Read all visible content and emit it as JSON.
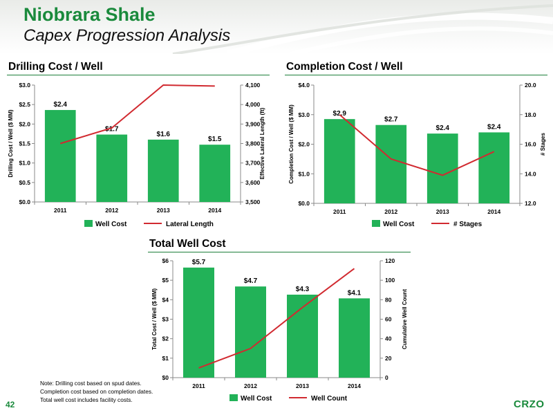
{
  "header": {
    "title": "Niobrara Shale",
    "subtitle": "Capex Progression Analysis"
  },
  "sections": {
    "drilling": "Drilling Cost / Well",
    "completion": "Completion Cost / Well",
    "total": "Total Well Cost"
  },
  "colors": {
    "bar": "#22b258",
    "line": "#d12a30",
    "accent": "#1a8a3c"
  },
  "chart_data": [
    {
      "type": "bar",
      "title": "",
      "categories": [
        "2011",
        "2012",
        "2013",
        "2014"
      ],
      "series": [
        {
          "name": "Well Cost",
          "type": "bar",
          "axis": "left",
          "values": [
            2.36,
            1.73,
            1.6,
            1.47
          ],
          "labels": [
            "$2.4",
            "$1.7",
            "$1.6",
            "$1.5"
          ]
        },
        {
          "name": "Lateral Length",
          "type": "line",
          "axis": "right",
          "values": [
            3800,
            3880,
            4100,
            4095
          ]
        }
      ],
      "ylabel": "Drilling Cost / Well ($ MM)",
      "y2label": "Effective Lateral Length (ft)",
      "ylim": [
        0,
        3
      ],
      "y2lim": [
        3500,
        4100
      ],
      "yticks": [
        "$0.0",
        "$0.5",
        "$1.0",
        "$1.5",
        "$2.0",
        "$2.5",
        "$3.0"
      ],
      "y2ticks": [
        "3,500",
        "3,600",
        "3,700",
        "3,800",
        "3,900",
        "4,000",
        "4,100"
      ],
      "legend": "bottom",
      "grid": false
    },
    {
      "type": "bar",
      "title": "",
      "categories": [
        "2011",
        "2012",
        "2013",
        "2014"
      ],
      "series": [
        {
          "name": "Well Cost",
          "type": "bar",
          "axis": "left",
          "values": [
            2.85,
            2.65,
            2.36,
            2.4
          ],
          "labels": [
            "$2.9",
            "$2.7",
            "$2.4",
            "$2.4"
          ]
        },
        {
          "name": "# Stages",
          "type": "line",
          "axis": "right",
          "values": [
            18.0,
            15.0,
            13.9,
            15.5
          ]
        }
      ],
      "ylabel": "Completion Cost / Well ($ MM)",
      "y2label": "# Stages",
      "ylim": [
        0,
        4
      ],
      "y2lim": [
        12,
        20
      ],
      "yticks": [
        "$0.0",
        "$1.0",
        "$2.0",
        "$3.0",
        "$4.0"
      ],
      "y2ticks": [
        "12.0",
        "14.0",
        "16.0",
        "18.0",
        "20.0"
      ],
      "legend": "bottom",
      "grid": false
    },
    {
      "type": "bar",
      "title": "",
      "categories": [
        "2011",
        "2012",
        "2013",
        "2014"
      ],
      "series": [
        {
          "name": "Well Cost",
          "type": "bar",
          "axis": "left",
          "values": [
            5.65,
            4.68,
            4.26,
            4.07
          ],
          "labels": [
            "$5.7",
            "$4.7",
            "$4.3",
            "$4.1"
          ]
        },
        {
          "name": "Well Count",
          "type": "line",
          "axis": "right",
          "values": [
            10,
            30,
            72,
            112
          ]
        }
      ],
      "ylabel": "Total Cost / Well ($ MM)",
      "y2label": "Cumulative Well Count",
      "ylim": [
        0,
        6
      ],
      "y2lim": [
        0,
        120
      ],
      "yticks": [
        "$0",
        "$1",
        "$2",
        "$3",
        "$4",
        "$5",
        "$6"
      ],
      "y2ticks": [
        "0",
        "20",
        "40",
        "60",
        "80",
        "100",
        "120"
      ],
      "legend": "bottom",
      "grid": false
    }
  ],
  "notes": [
    "Note:  Drilling cost based on spud dates.",
    "Completion cost based on completion dates.",
    "Total well cost includes facility costs."
  ],
  "footer": {
    "page": "42",
    "logo": "CRZO"
  }
}
